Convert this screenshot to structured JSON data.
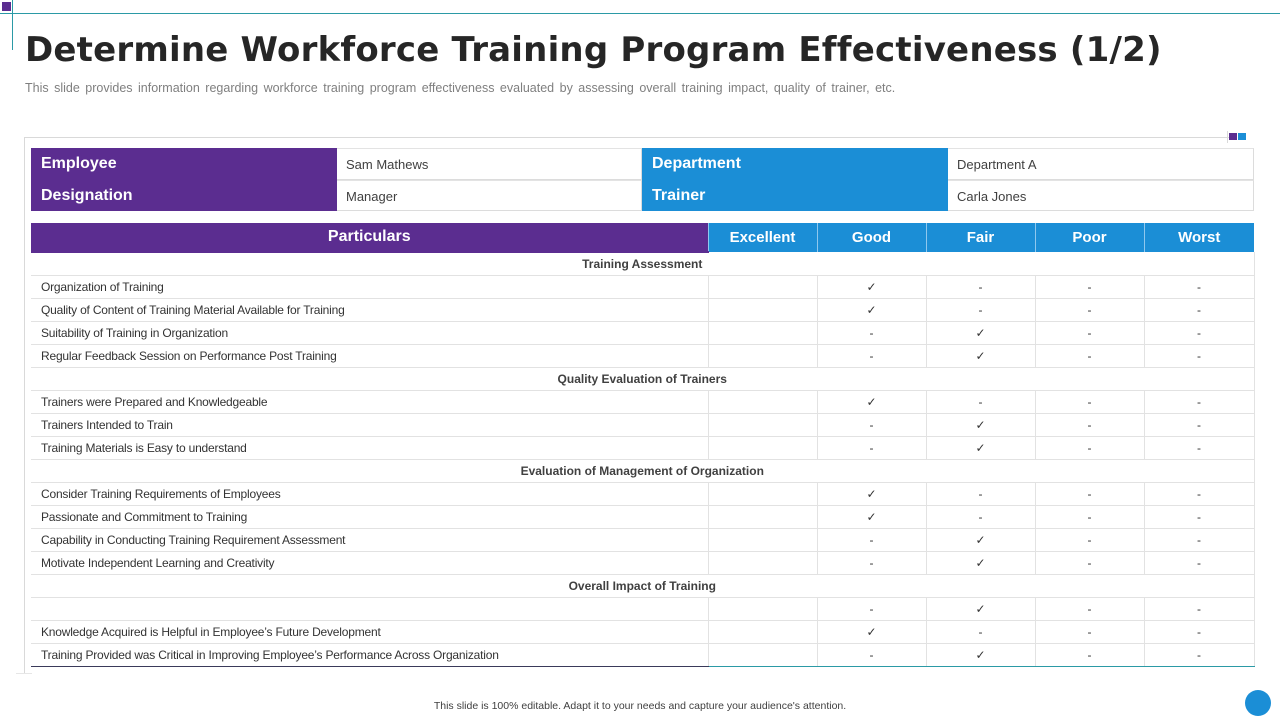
{
  "slide": {
    "title": "Determine Workforce Training Program Effectiveness (1/2)",
    "subtitle": "This slide provides information regarding workforce training program effectiveness evaluated by assessing overall training impact, quality of trainer, etc.",
    "footer": "This slide is 100% editable. Adapt it to your needs and capture your audience's attention."
  },
  "colors": {
    "purple": "#5b2d90",
    "blue": "#1b8ed6",
    "teal_line": "#2b9aa6"
  },
  "info": {
    "employee_label": "Employee",
    "employee_value": "Sam Mathews",
    "designation_label": "Designation",
    "designation_value": "Manager",
    "department_label": "Department",
    "department_value": "Department  A",
    "trainer_label": "Trainer",
    "trainer_value": "Carla Jones"
  },
  "table": {
    "headers": [
      "Particulars",
      "Excellent",
      "Good",
      "Fair",
      "Poor",
      "Worst"
    ],
    "sections": [
      {
        "title": "Training Assessment",
        "rows": [
          {
            "item": "Organization of Training",
            "excellent": "",
            "good": "✓",
            "fair": "-",
            "poor": "-",
            "worst": "-"
          },
          {
            "item": "Quality of Content of Training Material Available for Training",
            "excellent": "",
            "good": "✓",
            "fair": "-",
            "poor": "-",
            "worst": "-"
          },
          {
            "item": "Suitability of Training in Organization",
            "excellent": "",
            "good": "-",
            "fair": "✓",
            "poor": "-",
            "worst": "-"
          },
          {
            "item": "Regular Feedback Session on Performance Post Training",
            "excellent": "",
            "good": "-",
            "fair": "✓",
            "poor": "-",
            "worst": "-"
          }
        ]
      },
      {
        "title": "Quality Evaluation  of Trainers",
        "rows": [
          {
            "item": "Trainers were Prepared and Knowledgeable",
            "excellent": "",
            "good": "✓",
            "fair": "-",
            "poor": "-",
            "worst": "-"
          },
          {
            "item": "Trainers Intended to Train",
            "excellent": "",
            "good": "-",
            "fair": "✓",
            "poor": "-",
            "worst": "-"
          },
          {
            "item": "Training Materials is Easy to understand",
            "excellent": "",
            "good": "-",
            "fair": "✓",
            "poor": "-",
            "worst": "-"
          }
        ]
      },
      {
        "title": "Evaluation  of Management of Organization",
        "rows": [
          {
            "item": "Consider Training Requirements of Employees",
            "excellent": "",
            "good": "✓",
            "fair": "-",
            "poor": "-",
            "worst": "-"
          },
          {
            "item": "Passionate and Commitment to Training",
            "excellent": "",
            "good": "✓",
            "fair": "-",
            "poor": "-",
            "worst": "-"
          },
          {
            "item": "Capability in Conducting Training Requirement Assessment",
            "excellent": "",
            "good": "-",
            "fair": "✓",
            "poor": "-",
            "worst": "-"
          },
          {
            "item": "Motivate  Independent Learning and Creativity",
            "excellent": "",
            "good": "-",
            "fair": "✓",
            "poor": "-",
            "worst": "-"
          }
        ]
      },
      {
        "title": "Overall Impact of Training",
        "rows": [
          {
            "item": "",
            "excellent": "",
            "good": "-",
            "fair": "✓",
            "poor": "-",
            "worst": "-"
          },
          {
            "item": "Knowledge Acquired is Helpful in Employee’s Future Development",
            "excellent": "",
            "good": "✓",
            "fair": "-",
            "poor": "-",
            "worst": "-"
          },
          {
            "item": "Training Provided was Critical in Improving Employee’s Performance Across Organization",
            "excellent": "",
            "good": "-",
            "fair": "✓",
            "poor": "-",
            "worst": "-"
          }
        ]
      }
    ]
  }
}
